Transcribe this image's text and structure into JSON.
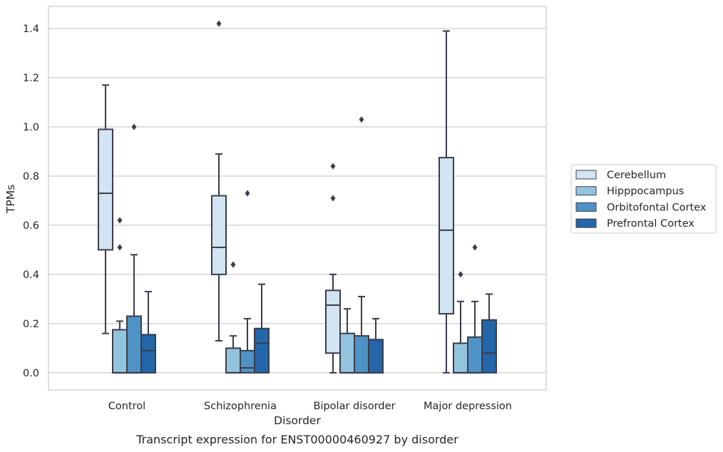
{
  "chart_data": {
    "type": "box",
    "title": "",
    "xlabel": "Disorder",
    "ylabel": "TPMs",
    "caption": "Transcript expression for ENST00000460927 by disorder",
    "ylim": [
      -0.07,
      1.49
    ],
    "yticks": [
      "0.0",
      "0.2",
      "0.4",
      "0.6",
      "0.8",
      "1.0",
      "1.2",
      "1.4"
    ],
    "grid": "horizontal",
    "legend_position": "right",
    "categories": [
      "Control",
      "Schizophrenia",
      "Bipolar disorder",
      "Major depression"
    ],
    "series": [
      {
        "name": "Cerebellum",
        "color": "#d2e3f2",
        "boxes": [
          {
            "whisker_low": 0.16,
            "q1": 0.5,
            "median": 0.73,
            "q3": 0.99,
            "whisker_high": 1.17,
            "outliers": []
          },
          {
            "whisker_low": 0.13,
            "q1": 0.4,
            "median": 0.51,
            "q3": 0.72,
            "whisker_high": 0.89,
            "outliers": [
              1.42
            ]
          },
          {
            "whisker_low": 0.0,
            "q1": 0.08,
            "median": 0.275,
            "q3": 0.335,
            "whisker_high": 0.4,
            "outliers": [
              0.84,
              0.71
            ]
          },
          {
            "whisker_low": 0.0,
            "q1": 0.24,
            "median": 0.58,
            "q3": 0.875,
            "whisker_high": 1.39,
            "outliers": []
          }
        ]
      },
      {
        "name": "Hipppocampus",
        "color": "#93c4de",
        "boxes": [
          {
            "whisker_low": 0.0,
            "q1": 0.0,
            "median": 0.0,
            "q3": 0.175,
            "whisker_high": 0.21,
            "outliers": [
              0.62,
              0.51
            ]
          },
          {
            "whisker_low": 0.0,
            "q1": 0.0,
            "median": 0.0,
            "q3": 0.1,
            "whisker_high": 0.15,
            "outliers": [
              0.44
            ]
          },
          {
            "whisker_low": 0.0,
            "q1": 0.0,
            "median": 0.0,
            "q3": 0.16,
            "whisker_high": 0.26,
            "outliers": []
          },
          {
            "whisker_low": 0.0,
            "q1": 0.0,
            "median": 0.0,
            "q3": 0.12,
            "whisker_high": 0.29,
            "outliers": [
              0.4
            ]
          }
        ]
      },
      {
        "name": "Orbitofontal Cortex",
        "color": "#4f93c6",
        "boxes": [
          {
            "whisker_low": 0.0,
            "q1": 0.0,
            "median": 0.0,
            "q3": 0.23,
            "whisker_high": 0.48,
            "outliers": [
              1.0
            ]
          },
          {
            "whisker_low": 0.0,
            "q1": 0.0,
            "median": 0.02,
            "q3": 0.09,
            "whisker_high": 0.22,
            "outliers": [
              0.73
            ]
          },
          {
            "whisker_low": 0.0,
            "q1": 0.0,
            "median": 0.0,
            "q3": 0.15,
            "whisker_high": 0.31,
            "outliers": [
              1.03
            ]
          },
          {
            "whisker_low": 0.0,
            "q1": 0.0,
            "median": 0.0,
            "q3": 0.145,
            "whisker_high": 0.29,
            "outliers": [
              0.51
            ]
          }
        ]
      },
      {
        "name": "Prefrontal Cortex",
        "color": "#2366aa",
        "boxes": [
          {
            "whisker_low": 0.0,
            "q1": 0.0,
            "median": 0.09,
            "q3": 0.155,
            "whisker_high": 0.33,
            "outliers": []
          },
          {
            "whisker_low": 0.0,
            "q1": 0.0,
            "median": 0.12,
            "q3": 0.18,
            "whisker_high": 0.36,
            "outliers": []
          },
          {
            "whisker_low": 0.0,
            "q1": 0.0,
            "median": 0.0,
            "q3": 0.135,
            "whisker_high": 0.22,
            "outliers": []
          },
          {
            "whisker_low": 0.0,
            "q1": 0.0,
            "median": 0.08,
            "q3": 0.215,
            "whisker_high": 0.32,
            "outliers": []
          }
        ]
      }
    ],
    "colors": {
      "box_edge": "#3a3d4a",
      "grid": "#cccccc",
      "frame": "#cccccc",
      "text": "#262626"
    }
  }
}
